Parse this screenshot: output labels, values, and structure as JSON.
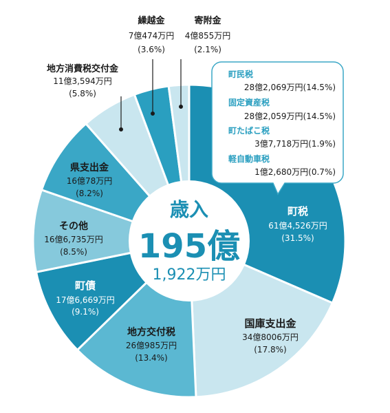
{
  "chart_data": {
    "type": "pie",
    "style": "donut",
    "center": {
      "line1": "歳入",
      "line2": "195億",
      "line3": "1,922万円"
    },
    "slices": [
      {
        "name": "町税",
        "amount": "61億4,526万円",
        "pct_label": "(31.5%)",
        "value": 31.5,
        "color": "#1b8fb3",
        "label_color": "#ffffff"
      },
      {
        "name": "国庫支出金",
        "amount": "34億8006万円",
        "pct_label": "(17.8%)",
        "value": 17.8,
        "color": "#c9e6ef",
        "label_color": "#1a1a1a"
      },
      {
        "name": "地方交付税",
        "amount": "26億985万円",
        "pct_label": "(13.4%)",
        "value": 13.4,
        "color": "#5bb8d2",
        "label_color": "#1a1a1a"
      },
      {
        "name": "町債",
        "amount": "17億6,669万円",
        "pct_label": "(9.1%)",
        "value": 9.1,
        "color": "#1b8fb3",
        "label_color": "#ffffff"
      },
      {
        "name": "その他",
        "amount": "16億6,735万円",
        "pct_label": "(8.5%)",
        "value": 8.5,
        "color": "#86c9dc",
        "label_color": "#1a1a1a"
      },
      {
        "name": "県支出金",
        "amount": "16億78万円",
        "pct_label": "(8.2%)",
        "value": 8.2,
        "color": "#3aa7c6",
        "label_color": "#1a1a1a"
      },
      {
        "name": "地方消費税交付金",
        "amount": "11億3,594万円",
        "pct_label": "(5.8%)",
        "value": 5.8,
        "color": "#c9e6ef",
        "label_color": "#1a1a1a"
      },
      {
        "name": "繰越金",
        "amount": "7億474万円",
        "pct_label": "(3.6%)",
        "value": 3.6,
        "color": "#2a9fc0",
        "label_color": "#1a1a1a"
      },
      {
        "name": "寄附金",
        "amount": "4億855万円",
        "pct_label": "(2.1%)",
        "value": 2.1,
        "color": "#c9e6ef",
        "label_color": "#1a1a1a"
      }
    ],
    "callout": {
      "items": [
        {
          "name": "町民税",
          "amount": "28億2,069万円(14.5%)"
        },
        {
          "name": "固定資産税",
          "amount": "28億2,059万円(14.5%)"
        },
        {
          "name": "町たばこ税",
          "amount": "3億7,718万円(1.9%)"
        },
        {
          "name": "軽自動車税",
          "amount": "1億2,680万円(0.7%)"
        }
      ]
    },
    "colors": {
      "accent": "#1b8fb3",
      "callout_border": "#3aa7c6",
      "callout_title": "#2a9fc0",
      "text": "#1a1a1a"
    }
  }
}
